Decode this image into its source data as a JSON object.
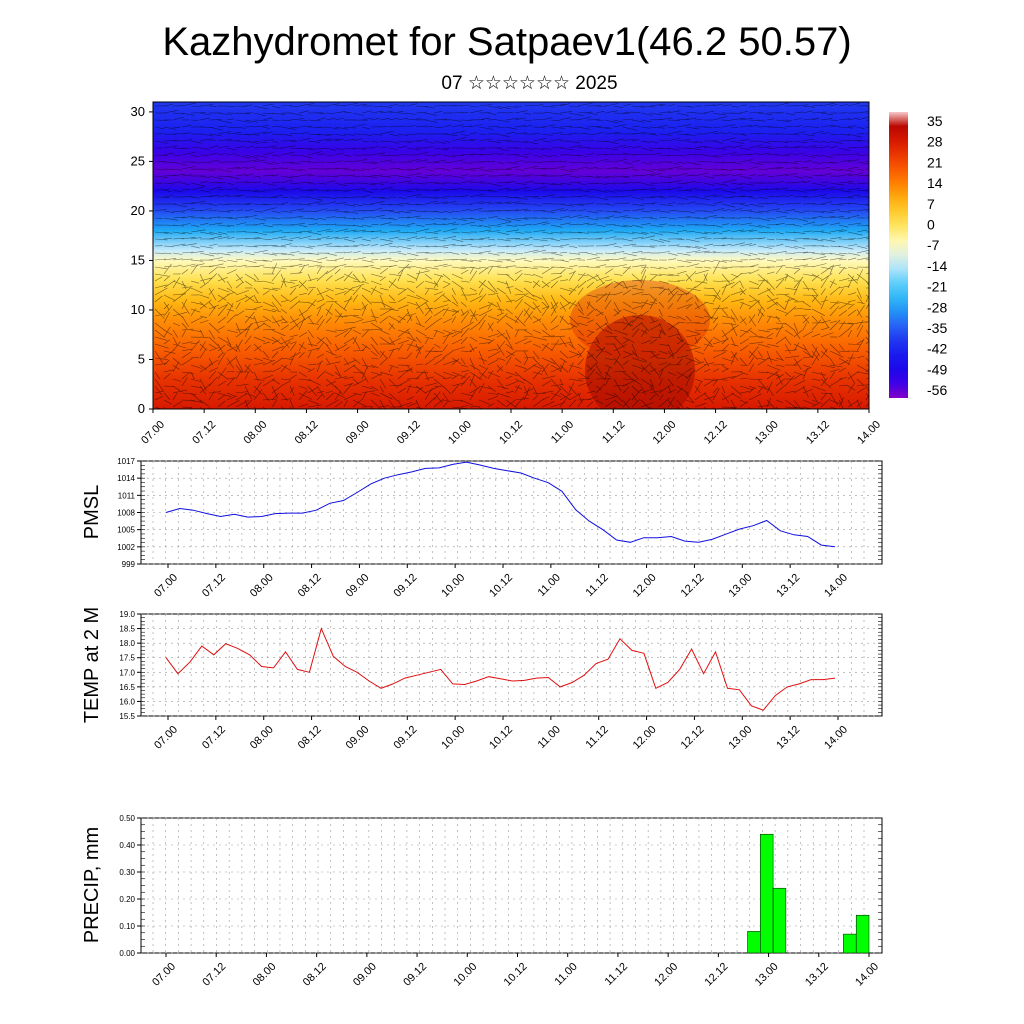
{
  "title": "Kazhydromet for Satpaev1(46.2 50.57)",
  "subtitle": "07 ☆☆☆☆☆☆ 2025",
  "colors": {
    "pmsl_line": "#1010e0",
    "temp_line": "#e01010",
    "precip_bar": "#00ff00",
    "gridline": "#999999"
  },
  "time_ticks": [
    "07.00",
    "07.12",
    "08.00",
    "08.12",
    "09.00",
    "09.12",
    "10.00",
    "10.12",
    "11.00",
    "11.12",
    "12.00",
    "12.12",
    "13.00",
    "13.12",
    "14.00"
  ],
  "chart_data": [
    {
      "type": "heatmap",
      "title": "",
      "ylabel": "",
      "ylim": [
        0,
        31
      ],
      "y_ticks": [
        0,
        5,
        10,
        15,
        20,
        25,
        30
      ],
      "x_ticks": [
        "07.00",
        "07.12",
        "08.00",
        "08.12",
        "09.00",
        "09.12",
        "10.00",
        "10.12",
        "11.00",
        "11.12",
        "12.00",
        "12.12",
        "13.00",
        "13.12",
        "14.00"
      ],
      "colorbar_labels": [
        "35",
        "28",
        "21",
        "14",
        "7",
        "0",
        "-7",
        "-14",
        "-21",
        "-28",
        "-35",
        "-42",
        "-49",
        "-56"
      ],
      "vertical_profile": [
        {
          "level": 0,
          "value": 28
        },
        {
          "level": 3,
          "value": 24
        },
        {
          "level": 6,
          "value": 18
        },
        {
          "level": 9,
          "value": 12
        },
        {
          "level": 11,
          "value": 7
        },
        {
          "level": 13,
          "value": 0
        },
        {
          "level": 15,
          "value": -7
        },
        {
          "level": 16,
          "value": -14
        },
        {
          "level": 18,
          "value": -28
        },
        {
          "level": 20,
          "value": -38
        },
        {
          "level": 22,
          "value": -50
        },
        {
          "level": 24,
          "value": -58
        },
        {
          "level": 26,
          "value": -54
        },
        {
          "level": 28,
          "value": -44
        },
        {
          "level": 31,
          "value": -40
        }
      ],
      "wind_barbs": true
    },
    {
      "type": "line",
      "ylabel": "PMSL",
      "ylim": [
        999,
        1017
      ],
      "y_ticks": [
        999,
        1002,
        1005,
        1008,
        1011,
        1014,
        1017
      ],
      "x_ticks": [
        "07.00",
        "07.12",
        "08.00",
        "08.12",
        "09.00",
        "09.12",
        "10.00",
        "10.12",
        "11.00",
        "11.12",
        "12.00",
        "12.12",
        "13.00",
        "13.12",
        "14.00"
      ],
      "grid": true,
      "series": [
        {
          "values": [
            1008.0,
            1008.7,
            1008.4,
            1007.8,
            1007.3,
            1007.7,
            1007.2,
            1007.3,
            1007.8,
            1007.9,
            1007.9,
            1008.4,
            1009.6,
            1010.1,
            1011.5,
            1013.0,
            1014.0,
            1014.6,
            1015.1,
            1015.7,
            1015.8,
            1016.4,
            1016.8,
            1016.3,
            1015.7,
            1015.3,
            1014.9,
            1014.0,
            1013.2,
            1011.7,
            1008.5,
            1006.5,
            1005.0,
            1003.2,
            1002.8,
            1003.6,
            1003.6,
            1003.8,
            1003.0,
            1002.8,
            1003.3,
            1004.2,
            1005.1,
            1005.7,
            1006.6,
            1004.8,
            1004.1,
            1003.8,
            1002.3,
            1002.0
          ]
        }
      ]
    },
    {
      "type": "line",
      "ylabel": "TEMP at 2 M",
      "ylim": [
        15.5,
        19.0
      ],
      "y_ticks": [
        "15.5",
        "16.0",
        "16.5",
        "17.0",
        "17.5",
        "18.0",
        "18.5",
        "19.0"
      ],
      "x_ticks": [
        "07.00",
        "07.12",
        "08.00",
        "08.12",
        "09.00",
        "09.12",
        "10.00",
        "10.12",
        "11.00",
        "11.12",
        "12.00",
        "12.12",
        "13.00",
        "13.12",
        "14.00"
      ],
      "grid": true,
      "series": [
        {
          "values": [
            17.5,
            16.95,
            17.35,
            17.9,
            17.6,
            17.98,
            17.82,
            17.6,
            17.2,
            17.15,
            17.7,
            17.1,
            17.0,
            18.5,
            17.55,
            17.2,
            17.0,
            16.7,
            16.45,
            16.6,
            16.8,
            16.9,
            17.0,
            17.1,
            16.6,
            16.58,
            16.7,
            16.85,
            16.78,
            16.7,
            16.72,
            16.8,
            16.82,
            16.5,
            16.65,
            16.9,
            17.3,
            17.45,
            18.15,
            17.75,
            17.65,
            16.45,
            16.65,
            17.1,
            17.8,
            16.95,
            17.7,
            16.45,
            16.4,
            15.85,
            15.7,
            16.2,
            16.5,
            16.6,
            16.75,
            16.75,
            16.8
          ]
        }
      ]
    },
    {
      "type": "bar",
      "ylabel": "PRECIP, mm",
      "ylim": [
        0,
        0.5
      ],
      "y_ticks": [
        "0.00",
        "0.10",
        "0.20",
        "0.30",
        "0.40",
        "0.50"
      ],
      "x_ticks": [
        "07.00",
        "07.12",
        "08.00",
        "08.12",
        "09.00",
        "09.12",
        "10.00",
        "10.12",
        "11.00",
        "11.12",
        "12.00",
        "12.12",
        "13.00",
        "13.12",
        "14.00"
      ],
      "grid": true,
      "bars": [
        {
          "start_hour": 139.5,
          "end_hour": 142.5,
          "value": 0.08
        },
        {
          "start_hour": 142.5,
          "end_hour": 145.5,
          "value": 0.44
        },
        {
          "start_hour": 145.5,
          "end_hour": 148.5,
          "value": 0.24
        },
        {
          "start_hour": 162.0,
          "end_hour": 165.0,
          "value": 0.07
        },
        {
          "start_hour": 165.0,
          "end_hour": 168.0,
          "value": 0.14
        }
      ]
    }
  ]
}
